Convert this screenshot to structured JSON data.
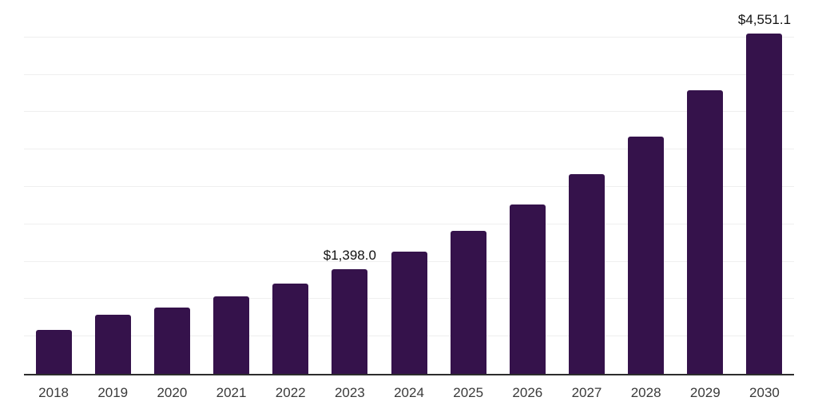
{
  "chart_data": {
    "type": "bar",
    "categories": [
      "2018",
      "2019",
      "2020",
      "2021",
      "2022",
      "2023",
      "2024",
      "2025",
      "2026",
      "2027",
      "2028",
      "2029",
      "2030"
    ],
    "values": [
      585,
      795,
      890,
      1040,
      1210,
      1398.0,
      1630,
      1915,
      2260,
      2675,
      3175,
      3795,
      4551.1
    ],
    "data_labels": [
      "",
      "",
      "",
      "",
      "",
      "$1,398.0",
      "",
      "",
      "",
      "",
      "",
      "",
      "$4,551.1"
    ],
    "title": "",
    "xlabel": "",
    "ylabel": "",
    "ylim": [
      0,
      5000
    ],
    "gridline_step": 500,
    "grid": "horizontal",
    "legend": "none",
    "y_axis_labels_visible": false,
    "colors": {
      "bar": "#35124b",
      "axis_line": "#2d2d2d",
      "gridline": "#efefef",
      "tick_label": "#3a3a3a",
      "data_label": "#111111",
      "background": "#ffffff"
    }
  }
}
